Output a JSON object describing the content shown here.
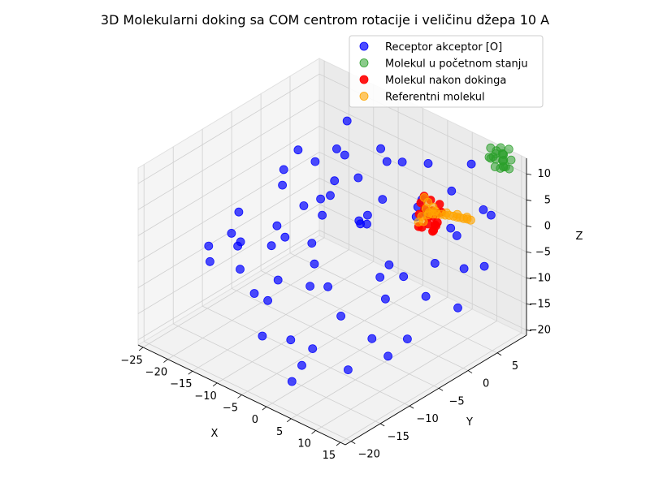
{
  "chart_data": {
    "type": "scatter",
    "dimensions": 3,
    "title": "3D Molekularni doking sa COM centrom rotacije i veličinu džepa 10 A",
    "xlabel": "X",
    "ylabel": "Y",
    "zlabel": "Z",
    "xlim": [
      -26,
      16
    ],
    "ylim": [
      -21,
      10
    ],
    "zlim": [
      -21,
      13
    ],
    "xticks": [
      "−25",
      "−20",
      "−15",
      "−10",
      "−5",
      "0",
      "5",
      "10",
      "15"
    ],
    "yticks": [
      "−20",
      "−15",
      "−10",
      "−5",
      "0",
      "5"
    ],
    "zticks": [
      "−20",
      "−15",
      "−10",
      "−5",
      "0",
      "5",
      "10"
    ],
    "grid": true,
    "legend_position": "top-right",
    "series": [
      {
        "name": "Receptor akceptor [O]",
        "color": "#0000ff",
        "points": [
          [
            -22.0,
            3.0,
            2.0
          ],
          [
            -19.0,
            -2.0,
            3.0
          ],
          [
            -21.0,
            -8.0,
            -2.0
          ],
          [
            -18.0,
            -4.0,
            -6.0
          ],
          [
            -15.0,
            0.0,
            5.0
          ],
          [
            -14.0,
            -6.0,
            -5.0
          ],
          [
            -13.0,
            2.0,
            7.0
          ],
          [
            -12.0,
            -10.0,
            -3.0
          ],
          [
            -16.0,
            -12.0,
            -8.0
          ],
          [
            -11.0,
            4.0,
            1.0
          ],
          [
            -10.0,
            -3.0,
            -1.0
          ],
          [
            -9.0,
            -7.0,
            4.0
          ],
          [
            -8.0,
            -14.0,
            -9.0
          ],
          [
            -7.0,
            1.0,
            -4.0
          ],
          [
            -6.0,
            -5.0,
            6.0
          ],
          [
            -5.0,
            -9.0,
            0.0
          ],
          [
            -4.0,
            3.0,
            8.0
          ],
          [
            -3.0,
            -11.0,
            -6.0
          ],
          [
            -2.0,
            -2.0,
            2.0
          ],
          [
            -1.0,
            -16.0,
            -12.0
          ],
          [
            0.0,
            0.0,
            -8.0
          ],
          [
            1.0,
            -6.0,
            5.0
          ],
          [
            2.0,
            5.0,
            9.0
          ],
          [
            3.0,
            -13.0,
            -2.0
          ],
          [
            4.0,
            -4.0,
            -10.0
          ],
          [
            5.0,
            2.0,
            3.0
          ],
          [
            6.0,
            -8.0,
            -14.0
          ],
          [
            7.0,
            -1.0,
            7.0
          ],
          [
            8.0,
            -15.0,
            -4.0
          ],
          [
            9.0,
            4.0,
            -1.0
          ],
          [
            10.0,
            -10.0,
            1.0
          ],
          [
            11.0,
            -3.0,
            -7.0
          ],
          [
            12.0,
            6.0,
            4.0
          ],
          [
            13.0,
            -18.0,
            -10.0
          ],
          [
            14.0,
            1.0,
            -3.0
          ],
          [
            -20.0,
            -14.0,
            -4.0
          ],
          [
            -17.0,
            5.0,
            -3.0
          ],
          [
            -13.0,
            -16.0,
            3.0
          ],
          [
            -10.0,
            7.0,
            5.0
          ],
          [
            -6.0,
            -18.0,
            -4.0
          ],
          [
            -4.0,
            8.0,
            -6.0
          ],
          [
            0.0,
            -19.0,
            2.0
          ],
          [
            3.0,
            8.0,
            -5.0
          ],
          [
            7.0,
            -19.0,
            -8.0
          ],
          [
            10.0,
            9.0,
            0.0
          ],
          [
            12.0,
            -7.0,
            -12.0
          ],
          [
            -23.0,
            -6.0,
            -10.0
          ],
          [
            -18.0,
            8.0,
            6.0
          ],
          [
            -15.0,
            -18.0,
            -2.0
          ],
          [
            -8.0,
            9.0,
            2.0
          ],
          [
            -2.0,
            -20.0,
            -9.0
          ],
          [
            2.0,
            9.0,
            1.0
          ],
          [
            6.0,
            -20.0,
            -11.0
          ],
          [
            11.0,
            7.0,
            -8.0
          ],
          [
            -21.0,
            6.0,
            -9.0
          ],
          [
            -12.0,
            9.0,
            -7.0
          ],
          [
            -7.0,
            -20.0,
            6.0
          ],
          [
            4.0,
            -20.0,
            -15.0
          ],
          [
            14.0,
            -12.0,
            -11.0
          ],
          [
            -9.0,
            0.0,
            9.0
          ],
          [
            5.0,
            -17.0,
            6.0
          ],
          [
            1.0,
            7.0,
            -12.0
          ],
          [
            -3.0,
            5.0,
            -15.0
          ],
          [
            8.0,
            5.0,
            -16.0
          ],
          [
            -24.0,
            2.0,
            -5.0
          ],
          [
            9.0,
            -2.0,
            10.0
          ],
          [
            -14.0,
            8.0,
            -12.0
          ],
          [
            6.0,
            9.0,
            8.0
          ]
        ]
      },
      {
        "name": "Molekul u početnom stanju",
        "color": "#2ca02c",
        "points": [
          [
            10.5,
            8.5,
            13.5
          ],
          [
            11.2,
            8.9,
            13.0
          ],
          [
            11.8,
            9.4,
            12.4
          ],
          [
            12.4,
            9.0,
            12.8
          ],
          [
            13.0,
            8.6,
            13.3
          ],
          [
            13.5,
            8.2,
            12.7
          ],
          [
            10.8,
            8.0,
            12.2
          ],
          [
            11.5,
            8.5,
            11.8
          ],
          [
            12.2,
            9.1,
            11.4
          ],
          [
            12.8,
            8.7,
            11.9
          ],
          [
            13.3,
            8.3,
            11.3
          ],
          [
            13.9,
            7.9,
            11.8
          ],
          [
            12.0,
            8.0,
            10.9
          ],
          [
            12.6,
            8.4,
            10.6
          ],
          [
            13.2,
            8.8,
            10.9
          ],
          [
            10.2,
            9.2,
            11.2
          ],
          [
            13.7,
            9.3,
            12.1
          ],
          [
            11.0,
            9.8,
            12.9
          ],
          [
            12.9,
            9.6,
            13.6
          ],
          [
            11.6,
            7.6,
            12.6
          ],
          [
            12.4,
            7.8,
            13.7
          ],
          [
            13.8,
            8.9,
            10.7
          ]
        ]
      },
      {
        "name": "Molekul nakon dokinga",
        "color": "#ff0000",
        "points": [
          [
            5.2,
            1.6,
            6.5
          ],
          [
            5.8,
            2.2,
            5.6
          ],
          [
            6.0,
            1.0,
            4.8
          ],
          [
            6.6,
            1.8,
            4.2
          ],
          [
            7.2,
            2.4,
            3.6
          ],
          [
            5.4,
            0.6,
            3.8
          ],
          [
            6.2,
            1.4,
            3.0
          ],
          [
            7.0,
            0.8,
            2.5
          ],
          [
            7.6,
            1.6,
            1.9
          ],
          [
            5.8,
            2.6,
            2.2
          ],
          [
            6.8,
            2.1,
            1.4
          ],
          [
            8.0,
            2.2,
            4.3
          ],
          [
            8.6,
            1.0,
            3.4
          ],
          [
            5.0,
            1.2,
            5.4
          ],
          [
            6.4,
            0.2,
            2.0
          ],
          [
            7.4,
            1.2,
            1.0
          ],
          [
            5.5,
            0.4,
            1.6
          ],
          [
            6.9,
            2.8,
            4.9
          ],
          [
            8.2,
            0.7,
            1.9
          ]
        ]
      },
      {
        "name": "Referentni molekul",
        "color": "#ffa500",
        "points": [
          [
            5.0,
            1.8,
            6.0
          ],
          [
            5.5,
            2.0,
            5.2
          ],
          [
            5.7,
            1.5,
            4.4
          ],
          [
            6.1,
            1.7,
            3.7
          ],
          [
            5.4,
            1.0,
            3.1
          ],
          [
            5.9,
            0.9,
            2.4
          ],
          [
            6.6,
            1.1,
            3.9
          ],
          [
            7.2,
            1.4,
            4.1
          ],
          [
            7.8,
            1.6,
            4.2
          ],
          [
            8.4,
            1.8,
            4.3
          ],
          [
            9.0,
            2.0,
            4.3
          ],
          [
            9.6,
            2.2,
            4.4
          ],
          [
            10.2,
            2.4,
            4.4
          ],
          [
            10.8,
            2.5,
            4.4
          ],
          [
            11.3,
            2.6,
            4.5
          ],
          [
            11.9,
            2.7,
            4.5
          ],
          [
            12.4,
            2.9,
            4.5
          ],
          [
            13.0,
            3.0,
            4.5
          ],
          [
            6.3,
            2.2,
            4.5
          ],
          [
            7.0,
            2.0,
            4.2
          ],
          [
            8.8,
            2.4,
            4.4
          ],
          [
            10.5,
            2.8,
            4.6
          ],
          [
            12.1,
            3.1,
            4.6
          ],
          [
            5.6,
            0.3,
            2.6
          ]
        ]
      }
    ]
  }
}
